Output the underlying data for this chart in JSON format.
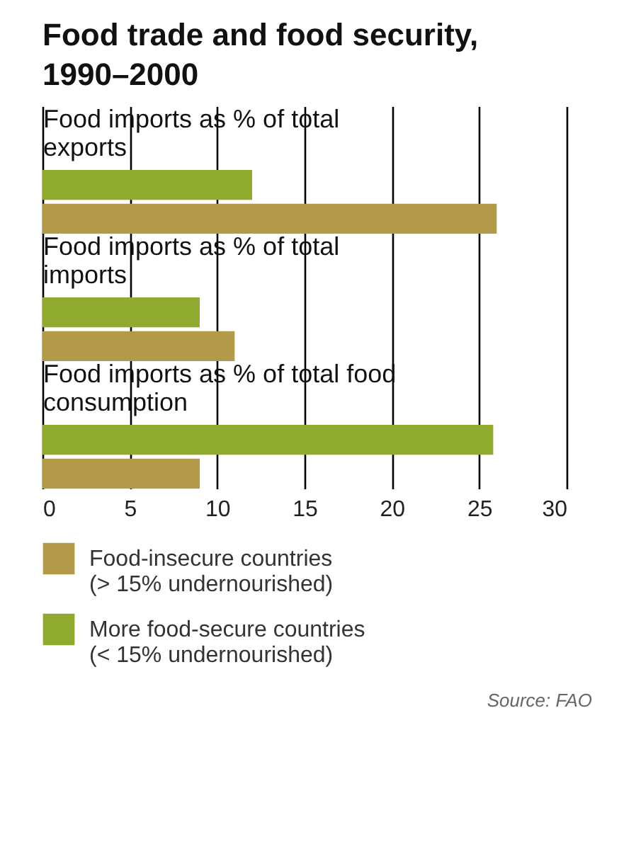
{
  "chart_data": {
    "type": "bar",
    "orientation": "horizontal",
    "title": "Food trade and food security, 1990–2000",
    "categories": [
      "Food imports as % of total exports",
      "Food imports as % of total imports",
      "Food imports as % of total food consumption"
    ],
    "series": [
      {
        "name": "Food-insecure countries\n(> 15% undernourished)",
        "color": "#b39a4a",
        "values": [
          26,
          11,
          9
        ]
      },
      {
        "name": "More food-secure countries\n(< 15% undernourished)",
        "color": "#8faa2e",
        "values": [
          12,
          9,
          25.8
        ]
      }
    ],
    "xlim": [
      0,
      30
    ],
    "xticks": [
      0,
      5,
      10,
      15,
      20,
      25,
      30
    ],
    "grid": "x",
    "legend": "bottom",
    "annotations": [
      "Source: FAO"
    ]
  }
}
